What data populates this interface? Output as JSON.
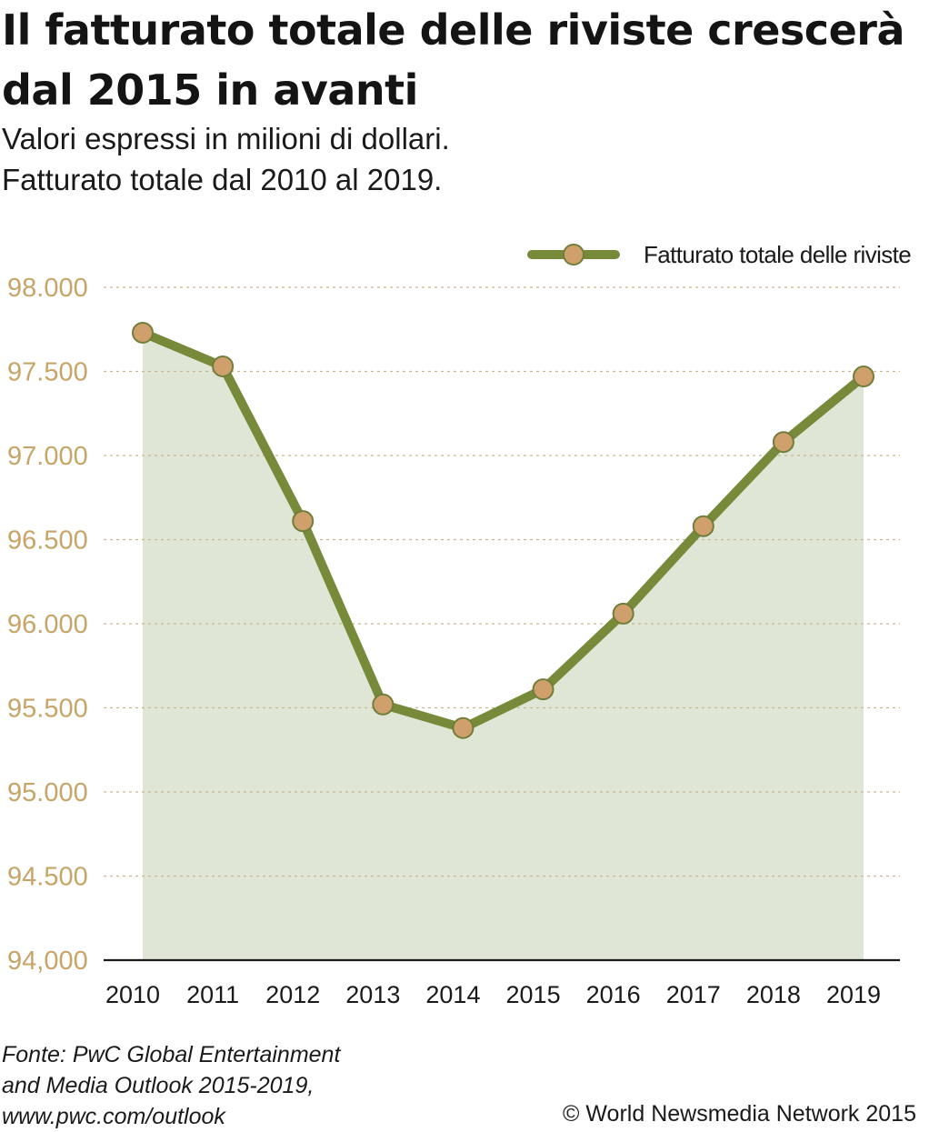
{
  "title_line1": "Il fatturato totale delle riviste crescerà",
  "title_line2": "dal 2015 in avanti",
  "subtitle_line1": "Valori espressi in milioni di dollari.",
  "subtitle_line2": "Fatturato totale dal 2010 al 2019.",
  "source_line1": "Fonte: PwC Global Entertainment",
  "source_line2": "and Media Outlook 2015-2019,",
  "source_line3": "www.pwc.com/outlook",
  "copyright": "© World Newsmedia Network 2015",
  "colors": {
    "line": "#778a3a",
    "marker_fill": "#cfa06c",
    "marker_stroke": "#6f7e3a",
    "area": "#e0e6d6",
    "tick_label": "#c7a467",
    "grid": "#c9b78e",
    "axis": "#1a1a1a"
  },
  "chart_data": {
    "type": "line",
    "area_fill": true,
    "categories": [
      "2010",
      "2011",
      "2012",
      "2013",
      "2014",
      "2015",
      "2016",
      "2017",
      "2018",
      "2019"
    ],
    "series": [
      {
        "name": "Fatturato totale delle riviste",
        "values": [
          97730,
          97530,
          96610,
          95520,
          95380,
          95610,
          96060,
          96580,
          97080,
          97470
        ]
      }
    ],
    "ylim": [
      94000,
      98000
    ],
    "yticks": [
      94000,
      94500,
      95000,
      95500,
      96000,
      96500,
      97000,
      97500,
      98000
    ],
    "ytick_labels": [
      "94,000",
      "94.500",
      "95.000",
      "95.500",
      "96.000",
      "96.500",
      "97.000",
      "97.500",
      "98.000"
    ],
    "grid": "horizontal dashed",
    "legend": "top-right",
    "xlabel": "",
    "ylabel": ""
  }
}
